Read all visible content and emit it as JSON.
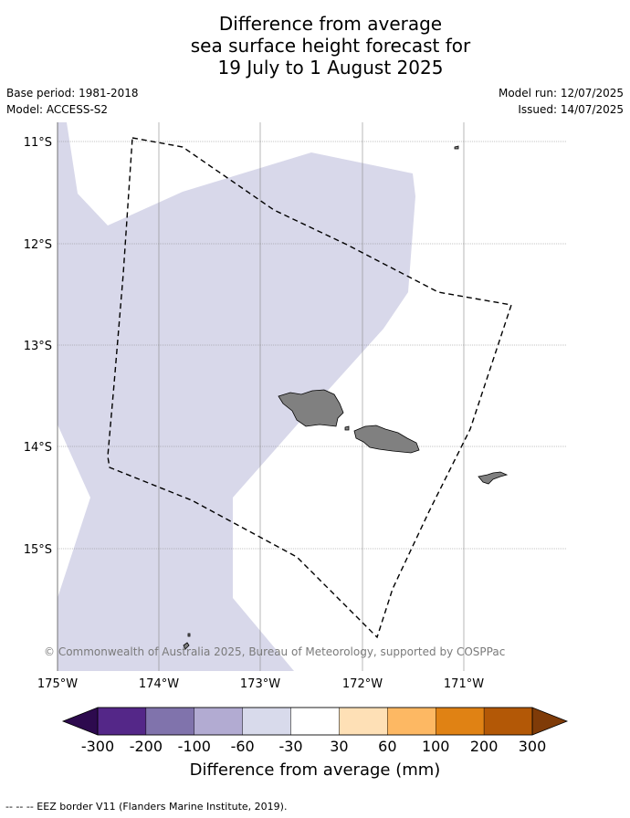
{
  "title": {
    "line1": "Difference from average",
    "line2": "sea surface height forecast for",
    "line3": "19 July to 1 August 2025"
  },
  "meta": {
    "base_period": "Base period: 1981-2018",
    "model": "Model: ACCESS-S2",
    "model_run": "Model run: 12/07/2025",
    "issued": "Issued: 14/07/2025"
  },
  "map": {
    "lon_range": [
      -175,
      -170
    ],
    "lat_range": [
      -16.2,
      -10.9
    ],
    "lat_ticks": [
      "11°S",
      "12°S",
      "13°S",
      "14°S",
      "15°S"
    ],
    "lon_ticks": [
      "175°W",
      "174°W",
      "173°W",
      "172°W",
      "171°W"
    ],
    "anomaly_fill_color": "#d8d8ea",
    "land_color": "#808080",
    "eez_style": "dashed",
    "copyright": "© Commonwealth of Australia 2025, Bureau of Meteorology, supported by COSPPac"
  },
  "colorbar": {
    "title": "Difference from average (mm)",
    "labels": [
      "-300",
      "-200",
      "-100",
      "-60",
      "-30",
      "30",
      "60",
      "100",
      "200",
      "300"
    ],
    "low_extend_color": "#2d0a4e",
    "high_extend_color": "#7f3b08",
    "colors": [
      "#542788",
      "#8073ac",
      "#b2abd2",
      "#d8daeb",
      "#ffffff",
      "#fee0b6",
      "#fdb863",
      "#e08214",
      "#b35806"
    ]
  },
  "legend": {
    "eez": "--  --  -- EEZ border V11 (Flanders Marine Institute, 2019)."
  }
}
